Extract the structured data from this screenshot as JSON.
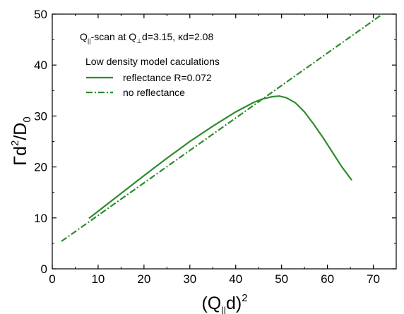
{
  "chart_data": {
    "type": "line",
    "xlim": [
      0,
      75
    ],
    "ylim": [
      0,
      50
    ],
    "x_ticks": [
      0,
      10,
      20,
      30,
      40,
      50,
      60,
      70
    ],
    "y_ticks": [
      0,
      10,
      20,
      30,
      40,
      50
    ],
    "grid": false,
    "xlabel": {
      "base": "(Q",
      "sub": "||",
      "mid": "d)",
      "sup": "2"
    },
    "ylabel": {
      "base": "Γd",
      "sup": "2",
      "mid": "/D",
      "sub": "0"
    },
    "annotation": {
      "p1": "Q",
      "p1_sub": "||",
      "p2": "-scan at Q",
      "p2_sub": "⊥",
      "p3": "d=3.15, ",
      "kappa": "κ",
      "p4": "d=2.08"
    },
    "legend_title": "Low density model caculations",
    "legend_position": "upper-left",
    "series": [
      {
        "name": "reflectance R=0.072",
        "color": "#2e8b2e",
        "dash": "solid",
        "points": [
          [
            8,
            9.9
          ],
          [
            10,
            11.3
          ],
          [
            15,
            14.8
          ],
          [
            20,
            18.3
          ],
          [
            25,
            21.7
          ],
          [
            30,
            25.0
          ],
          [
            35,
            28.0
          ],
          [
            40,
            30.8
          ],
          [
            44,
            32.7
          ],
          [
            46,
            33.4
          ],
          [
            48,
            33.8
          ],
          [
            49.5,
            33.9
          ],
          [
            51,
            33.6
          ],
          [
            53,
            32.6
          ],
          [
            55,
            30.8
          ],
          [
            57,
            28.4
          ],
          [
            59,
            25.8
          ],
          [
            61,
            23.0
          ],
          [
            63,
            20.2
          ],
          [
            65.3,
            17.4
          ]
        ]
      },
      {
        "name": "no reflectance",
        "color": "#2e8b2e",
        "dash": "dashdot",
        "points": [
          [
            2,
            5.4
          ],
          [
            72,
            50.0
          ]
        ]
      }
    ]
  }
}
